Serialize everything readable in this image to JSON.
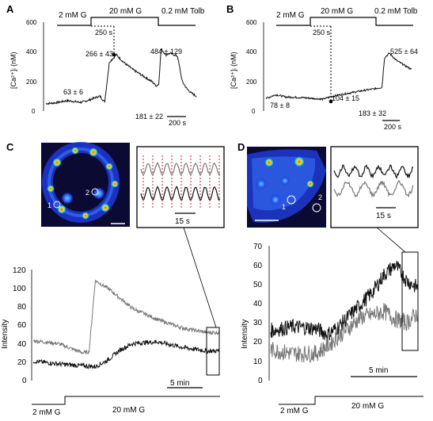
{
  "panels": {
    "A": {
      "label": "A",
      "stim": {
        "a": "2 mM G",
        "b": "20 mM G",
        "c": "0.2 mM Tolb"
      },
      "delay": "250 s",
      "ylabel": "[Ca²⁺]ᵢ (nM)",
      "yticks": [
        "600",
        "400",
        "200",
        "0"
      ],
      "ann": {
        "base": "63 ± 6",
        "peak": "266 ± 43",
        "plateau": "181 ± 22",
        "tolb": "484 ± 129"
      },
      "scale": "200 s"
    },
    "B": {
      "label": "B",
      "stim": {
        "a": "2 mM G",
        "b": "20 mM G",
        "c": "0.2 mM Tolb"
      },
      "delay": "250 s",
      "ylabel": "[Ca²⁺]ᵢ (nM)",
      "yticks": [
        "600",
        "400",
        "200",
        "0"
      ],
      "ann": {
        "base": "78 ± 8",
        "rise": "104 ± 15",
        "plateau": "183 ± 32",
        "tolb": "525 ± 64"
      },
      "scale": "200 s"
    },
    "C": {
      "label": "C",
      "cells": [
        "1",
        "2"
      ],
      "inset_scale": "15 s",
      "ylabel": "Intensity",
      "yticks": [
        "120",
        "100",
        "80",
        "60",
        "40",
        "20",
        "0"
      ],
      "scale": "5 min",
      "stim": {
        "a": "2 mM G",
        "b": "20 mM G"
      }
    },
    "D": {
      "label": "D",
      "cells": [
        "1",
        "2"
      ],
      "inset_scale": "15 s",
      "ylabel": "Intensity",
      "yticks": [
        "70",
        "60",
        "50",
        "40",
        "30",
        "20",
        "10",
        "0"
      ],
      "scale": "5 min",
      "stim": {
        "a": "2 mM G",
        "b": "20 mM G"
      }
    }
  },
  "colors": {
    "trace_black": "#111111",
    "trace_gray": "#777777",
    "dotted_red": "#c0203a",
    "islet_bg": "#0a0a33"
  },
  "chart_data": [
    {
      "type": "line",
      "panel": "A",
      "xlabel": "",
      "ylabel": "[Ca²⁺]ᵢ (nM)",
      "ylim": [
        0,
        600
      ],
      "series": [
        {
          "x": [
            0,
            40,
            90,
            150,
            180,
            210,
            230,
            250,
            270,
            300,
            330,
            370,
            410,
            450,
            470,
            480,
            490,
            510,
            530,
            560,
            580,
            600,
            620,
            640
          ],
          "values": [
            50,
            55,
            70,
            58,
            72,
            90,
            100,
            60,
            330,
            380,
            330,
            280,
            240,
            200,
            170,
            180,
            420,
            380,
            390,
            370,
            200,
            150,
            120,
            100
          ]
        }
      ],
      "annotations": [
        "63 ± 6",
        "266 ± 43",
        "181 ± 22",
        "484 ± 129"
      ]
    },
    {
      "type": "line",
      "panel": "B",
      "xlabel": "",
      "ylabel": "[Ca²⁺]ᵢ (nM)",
      "ylim": [
        0,
        600
      ],
      "series": [
        {
          "x": [
            0,
            40,
            80,
            150,
            230,
            260,
            300,
            350,
            400,
            440,
            470,
            480,
            500,
            530,
            560,
            590
          ],
          "values": [
            85,
            110,
            95,
            90,
            80,
            95,
            110,
            125,
            140,
            150,
            160,
            360,
            390,
            340,
            310,
            280
          ]
        }
      ],
      "annotations": [
        "78 ± 8",
        "104 ± 15",
        "183 ± 32",
        "525 ± 64"
      ]
    },
    {
      "type": "line",
      "panel": "C",
      "xlabel": "",
      "ylabel": "Intensity",
      "ylim": [
        0,
        120
      ],
      "series": [
        {
          "x": [
            0,
            4,
            8,
            9,
            10,
            12,
            16,
            20,
            24,
            28,
            30
          ],
          "values": [
            43,
            40,
            30,
            31,
            108,
            100,
            78,
            66,
            57,
            52,
            52
          ]
        },
        {
          "x": [
            0,
            4,
            8,
            10,
            12,
            14,
            16,
            20,
            24,
            28,
            30
          ],
          "values": [
            21,
            18,
            16,
            15,
            22,
            33,
            40,
            42,
            36,
            32,
            32
          ]
        }
      ]
    },
    {
      "type": "line",
      "panel": "D",
      "xlabel": "",
      "ylabel": "Intensity",
      "ylim": [
        0,
        70
      ],
      "series": [
        {
          "x": [
            0,
            4,
            8,
            10,
            12,
            14,
            16,
            18,
            20,
            22,
            24,
            26
          ],
          "values": [
            26,
            28,
            27,
            24,
            28,
            34,
            40,
            46,
            55,
            60,
            52,
            48
          ]
        },
        {
          "x": [
            0,
            4,
            8,
            10,
            12,
            14,
            16,
            18,
            20,
            22,
            24,
            26
          ],
          "values": [
            16,
            14,
            14,
            18,
            23,
            28,
            33,
            34,
            36,
            32,
            30,
            35
          ]
        }
      ]
    }
  ]
}
